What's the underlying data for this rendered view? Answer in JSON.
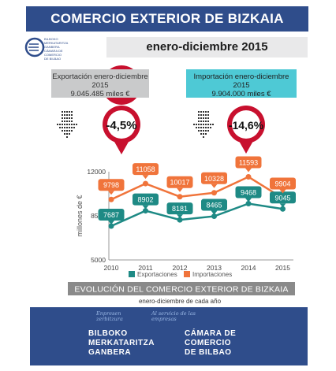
{
  "header": {
    "title": "COMERCIO EXTERIOR DE BIZKAIA",
    "period": "enero-diciembre 2015",
    "logo_text": [
      "BILBOKO",
      "MERKATARITZA",
      "GANBERA",
      "CÁMARA DE",
      "COMERCIO",
      "DE BILBAO"
    ]
  },
  "export_box": {
    "line1": "Exportación enero-diciembre",
    "line2": "2015",
    "line3": "9.045.485 miles €",
    "change": "-4,5%"
  },
  "import_box": {
    "line1": "Importación enero-diciembre",
    "line2": "2015",
    "line3": "9.904.000 miles €",
    "change": "-14,6%"
  },
  "colors": {
    "exports": "#1e8a85",
    "imports": "#f0743b",
    "change_badge": "#c8102e",
    "title_bar": "#2f4d8b"
  },
  "chart_data": {
    "type": "line",
    "title": "EVOLUCIÓN DEL COMERCIO EXTERIOR DE BIZKAIA",
    "subtitle": "enero-diciembre de cada año",
    "ylabel": "millones de €",
    "x": [
      "2010",
      "2011",
      "2012",
      "2013",
      "2014",
      "2015"
    ],
    "y_ticks": [
      "5000",
      "8500",
      "12000"
    ],
    "ylim": [
      5000,
      12000
    ],
    "series": [
      {
        "name": "Exportaciones",
        "values": [
          7687,
          8902,
          8181,
          8465,
          9468,
          9045
        ]
      },
      {
        "name": "Importaciones",
        "values": [
          9798,
          11058,
          10017,
          10328,
          11593,
          9904
        ]
      }
    ],
    "legend": "bottom",
    "grid": false
  },
  "footer": {
    "left_line1": "BILBOKO",
    "left_line2": "MERKATARITZA",
    "left_line3": "GANBERA",
    "right_line1": "CÁMARA DE",
    "right_line2": "COMERCIO",
    "right_line3": "DE BILBAO",
    "slogan1": "Enpresen zerbitzura",
    "slogan2": "Al servicio de las empresas"
  }
}
